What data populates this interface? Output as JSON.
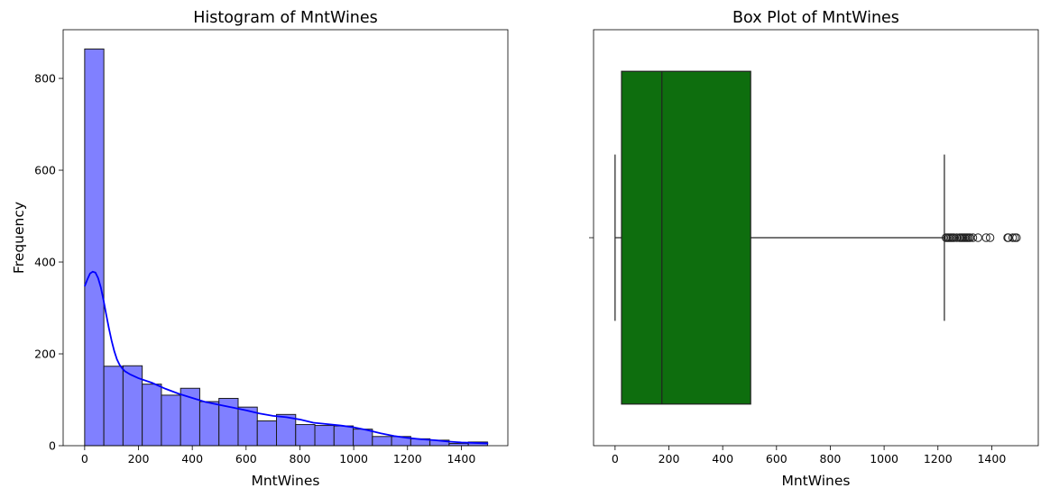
{
  "chart_data": [
    {
      "type": "bar",
      "title": "Histogram of MntWines",
      "xlabel": "MntWines",
      "ylabel": "Frequency",
      "xlim": [
        -80,
        1573
      ],
      "ylim": [
        0,
        906
      ],
      "xticks": [
        0,
        200,
        400,
        600,
        800,
        1000,
        1200,
        1400
      ],
      "yticks": [
        0,
        200,
        400,
        600,
        800
      ],
      "bin_start": 0,
      "bin_width": 71.3,
      "values": [
        864,
        173,
        174,
        134,
        110,
        125,
        96,
        103,
        84,
        54,
        68,
        46,
        44,
        43,
        36,
        20,
        20,
        15,
        12,
        5,
        8
      ],
      "kde": {
        "x": [
          0,
          10,
          20,
          30,
          40,
          50,
          60,
          70,
          80,
          90,
          100,
          110,
          120,
          130,
          140,
          150,
          170,
          200,
          250,
          300,
          350,
          400,
          450,
          500,
          550,
          600,
          650,
          700,
          750,
          800,
          850,
          900,
          950,
          1000,
          1050,
          1100,
          1150,
          1200,
          1250,
          1300,
          1350,
          1400,
          1450,
          1500
        ],
        "y": [
          347,
          362,
          375,
          379,
          377,
          365,
          345,
          317,
          286,
          256,
          229,
          206,
          188,
          176,
          168,
          162,
          155,
          147,
          137,
          124,
          113,
          104,
          95,
          89,
          83,
          77,
          70,
          65,
          62,
          57,
          50,
          47,
          44,
          40,
          34,
          27,
          21,
          17,
          14,
          12,
          9,
          7,
          6,
          5
        ]
      },
      "bar_color": "#8080ff",
      "bar_edge": "#1a1a1a",
      "kde_color": "#0000ff"
    },
    {
      "type": "box",
      "title": "Box Plot of MntWines",
      "xlabel": "MntWines",
      "xlim": [
        -80,
        1573
      ],
      "xticks": [
        0,
        200,
        400,
        600,
        800,
        1000,
        1200,
        1400
      ],
      "q1": 24,
      "median": 174,
      "q3": 504,
      "whisker_low": 0,
      "whisker_high": 1224,
      "outliers": [
        1230,
        1235,
        1240,
        1245,
        1250,
        1255,
        1260,
        1270,
        1280,
        1285,
        1290,
        1295,
        1300,
        1305,
        1310,
        1315,
        1320,
        1330,
        1349,
        1379,
        1394,
        1459,
        1462,
        1478,
        1486,
        1492
      ],
      "box_color": "#0e6e0e",
      "edge_color": "#222222"
    }
  ]
}
